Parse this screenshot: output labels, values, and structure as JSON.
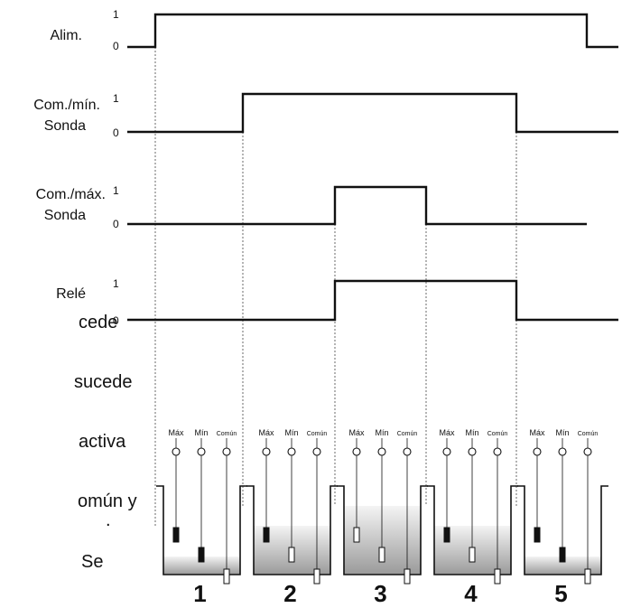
{
  "signals": [
    {
      "label_lines": [
        "Alim."
      ],
      "high": "1",
      "low": "0"
    },
    {
      "label_lines": [
        "Com./mín.",
        "Sonda"
      ],
      "high": "1",
      "low": "0"
    },
    {
      "label_lines": [
        "Com./máx.",
        "Sonda"
      ],
      "high": "1",
      "low": "0"
    },
    {
      "label_lines": [
        "Relé"
      ],
      "high": "1",
      "low": "0"
    }
  ],
  "background_text_fragments": [
    "cede",
    "sucede",
    "activa",
    "omún y",
    ".",
    "Se"
  ],
  "probe_labels": {
    "max": "Máx",
    "min": "Mín",
    "common": "Común"
  },
  "stages": [
    {
      "number": "1",
      "max_probe": "dry",
      "min_probe": "dry",
      "common_probe": "wet"
    },
    {
      "number": "2",
      "max_probe": "dry",
      "min_probe": "wet",
      "common_probe": "wet"
    },
    {
      "number": "3",
      "max_probe": "wet",
      "min_probe": "wet",
      "common_probe": "wet"
    },
    {
      "number": "4",
      "max_probe": "dry",
      "min_probe": "wet",
      "common_probe": "wet"
    },
    {
      "number": "5",
      "max_probe": "dry",
      "min_probe": "dry",
      "common_probe": "wet"
    }
  ],
  "colors": {
    "line": "#111111",
    "water_dark": "#9a9a9a",
    "water_light": "#f2f2f2"
  }
}
